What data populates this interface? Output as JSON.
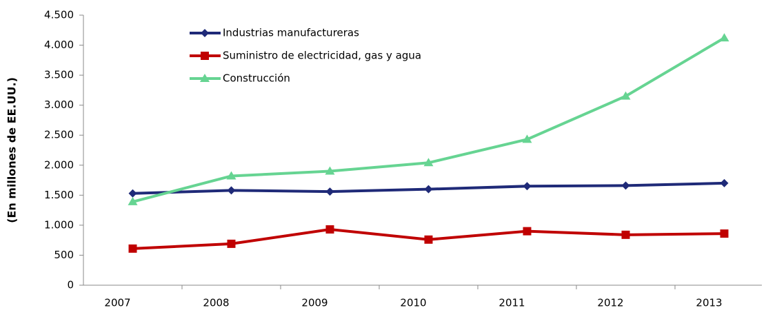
{
  "chart_data": {
    "type": "line",
    "y_axis_label": "(En millones de EE.UU.)",
    "categories": [
      "2007",
      "2008",
      "2009",
      "2010",
      "2011",
      "2012",
      "2013"
    ],
    "series": [
      {
        "name": "Industrias manufactureras",
        "color": "#1f2a78",
        "marker": "diamond",
        "values": [
          1530,
          1580,
          1560,
          1600,
          1650,
          1660,
          1700
        ]
      },
      {
        "name": "Suministro de electricidad, gas y agua",
        "color": "#c00000",
        "marker": "square",
        "values": [
          610,
          690,
          930,
          760,
          900,
          840,
          860
        ]
      },
      {
        "name": "Construcción",
        "color": "#66d492",
        "marker": "triangle",
        "values": [
          1390,
          1820,
          1900,
          2040,
          2430,
          3150,
          4120
        ]
      }
    ],
    "ylim": [
      0,
      4500
    ],
    "yticks": [
      0,
      500,
      {
        "value": 1000,
        "label": "1.000"
      },
      {
        "value": 1500,
        "label": "1.500"
      },
      {
        "value": 2000,
        "label": "2.000"
      },
      {
        "value": 2500,
        "label": "2.500"
      },
      {
        "value": 3000,
        "label": "3.000"
      },
      {
        "value": 3500,
        "label": "3.500"
      },
      {
        "value": 4000,
        "label": "4.000"
      },
      {
        "value": 4500,
        "label": "4.500"
      }
    ],
    "grid": false,
    "legend": "top-left"
  }
}
